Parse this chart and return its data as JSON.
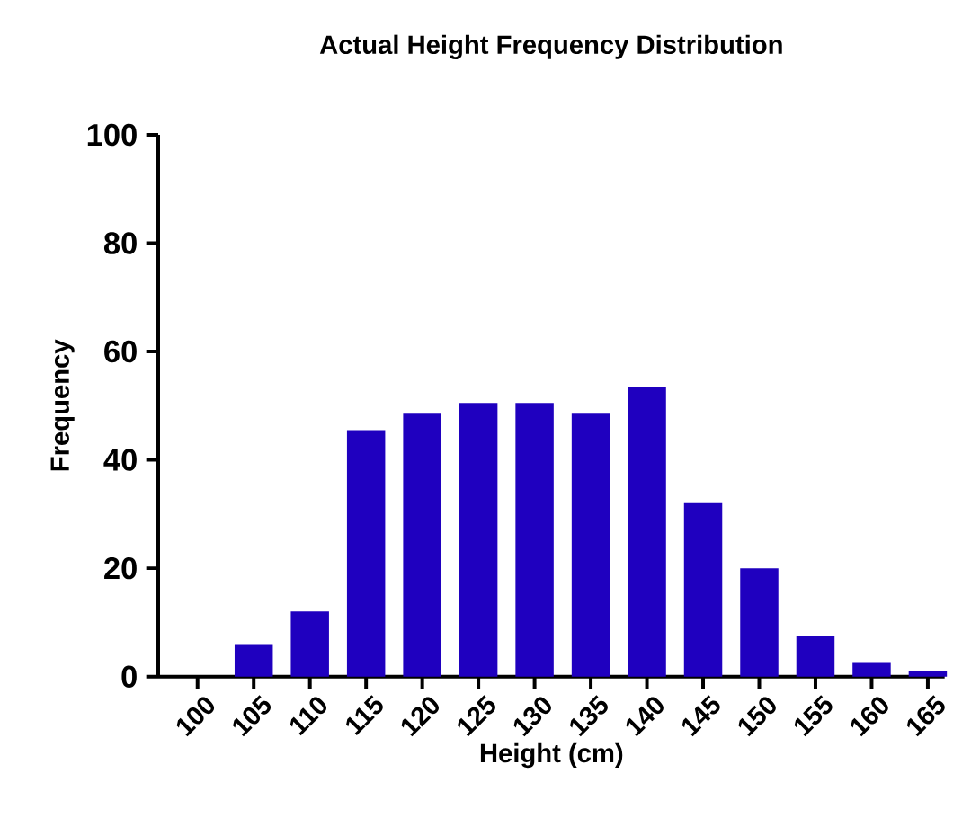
{
  "chart_data": {
    "type": "bar",
    "title": "Actual Height Frequency Distribution",
    "xlabel": "Height (cm)",
    "ylabel": "Frequency",
    "categories": [
      "100",
      "105",
      "110",
      "115",
      "120",
      "125",
      "130",
      "135",
      "140",
      "145",
      "150",
      "155",
      "160",
      "165"
    ],
    "values": [
      0,
      6,
      12,
      45.5,
      48.5,
      50.5,
      50.5,
      48.5,
      53.5,
      32,
      20,
      7.5,
      2.5,
      1
    ],
    "color": "#1f00bf",
    "ylim": [
      0,
      100
    ],
    "yticks": [
      0,
      20,
      40,
      60,
      80,
      100
    ],
    "grid": false
  }
}
